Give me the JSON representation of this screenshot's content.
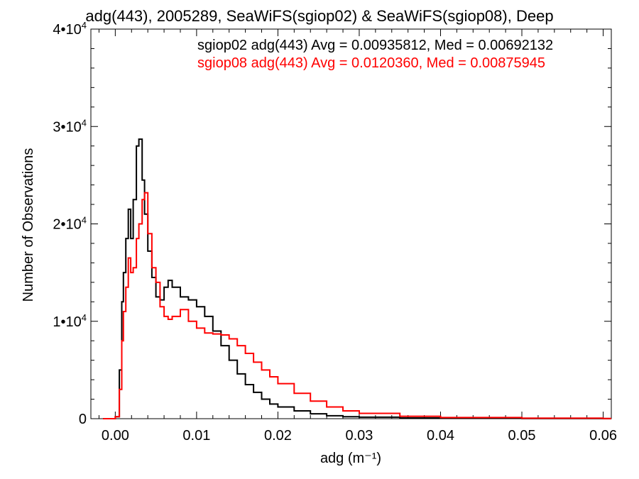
{
  "chart_data": {
    "type": "line",
    "title": "adg(443), 2005289, SeaWiFS(sgiop02) & SeaWiFS(sgiop08), Deep",
    "xlabel": "adg (m⁻¹)",
    "ylabel": "Number of Observations",
    "xlim": [
      -0.003,
      0.061
    ],
    "ylim": [
      0,
      40000
    ],
    "x_ticks": [
      {
        "value": 0.0,
        "label": "0.00"
      },
      {
        "value": 0.01,
        "label": "0.01"
      },
      {
        "value": 0.02,
        "label": "0.02"
      },
      {
        "value": 0.03,
        "label": "0.03"
      },
      {
        "value": 0.04,
        "label": "0.04"
      },
      {
        "value": 0.05,
        "label": "0.05"
      },
      {
        "value": 0.06,
        "label": "0.06"
      }
    ],
    "y_ticks": [
      {
        "value": 0,
        "mantissa": "0",
        "exponent": ""
      },
      {
        "value": 10000,
        "mantissa": "1•10",
        "exponent": "4"
      },
      {
        "value": 20000,
        "mantissa": "2•10",
        "exponent": "4"
      },
      {
        "value": 30000,
        "mantissa": "3•10",
        "exponent": "4"
      },
      {
        "value": 40000,
        "mantissa": "4•10",
        "exponent": "4"
      }
    ],
    "grid": false,
    "legend_position": "top-right",
    "series": [
      {
        "name": "sgiop02 adg(443) Avg = 0.00935812, Med = 0.00692132",
        "color": "#000000",
        "x": [
          -0.0015,
          0.0,
          0.0005,
          0.0008,
          0.001,
          0.0013,
          0.0016,
          0.0019,
          0.0022,
          0.0026,
          0.0029,
          0.0033,
          0.0036,
          0.004,
          0.0045,
          0.005,
          0.0055,
          0.006,
          0.0065,
          0.007,
          0.008,
          0.009,
          0.01,
          0.011,
          0.012,
          0.013,
          0.014,
          0.015,
          0.016,
          0.017,
          0.018,
          0.019,
          0.02,
          0.022,
          0.024,
          0.026,
          0.028,
          0.03,
          0.035,
          0.04,
          0.05,
          0.06
        ],
        "values": [
          0,
          200,
          5000,
          12000,
          15000,
          18500,
          21500,
          18500,
          22500,
          28000,
          28700,
          24500,
          21000,
          17200,
          14500,
          12500,
          12200,
          13500,
          14200,
          13500,
          12500,
          12200,
          11500,
          10500,
          9000,
          7500,
          6000,
          4600,
          3500,
          2700,
          2000,
          1500,
          1200,
          800,
          500,
          300,
          200,
          150,
          80,
          40,
          20,
          10
        ]
      },
      {
        "name": "sgiop08 adg(443) Avg = 0.0120360, Med = 0.00875945",
        "color": "#ff0000",
        "x": [
          -0.0015,
          0.0,
          0.0005,
          0.0008,
          0.001,
          0.0013,
          0.0016,
          0.0019,
          0.0022,
          0.0026,
          0.0029,
          0.0033,
          0.0036,
          0.004,
          0.0045,
          0.005,
          0.0055,
          0.006,
          0.0065,
          0.007,
          0.008,
          0.009,
          0.01,
          0.011,
          0.012,
          0.013,
          0.014,
          0.015,
          0.016,
          0.017,
          0.018,
          0.019,
          0.02,
          0.022,
          0.024,
          0.026,
          0.028,
          0.03,
          0.035,
          0.04,
          0.05,
          0.06
        ],
        "values": [
          0,
          200,
          3000,
          8000,
          11000,
          13500,
          16500,
          15000,
          15500,
          18500,
          20000,
          22500,
          23200,
          19000,
          15500,
          14000,
          11500,
          10500,
          10200,
          10500,
          11200,
          10000,
          9300,
          8800,
          8700,
          8600,
          8200,
          7500,
          6700,
          5800,
          5000,
          4300,
          3600,
          2600,
          1800,
          1200,
          800,
          550,
          250,
          120,
          50,
          20
        ]
      }
    ]
  }
}
